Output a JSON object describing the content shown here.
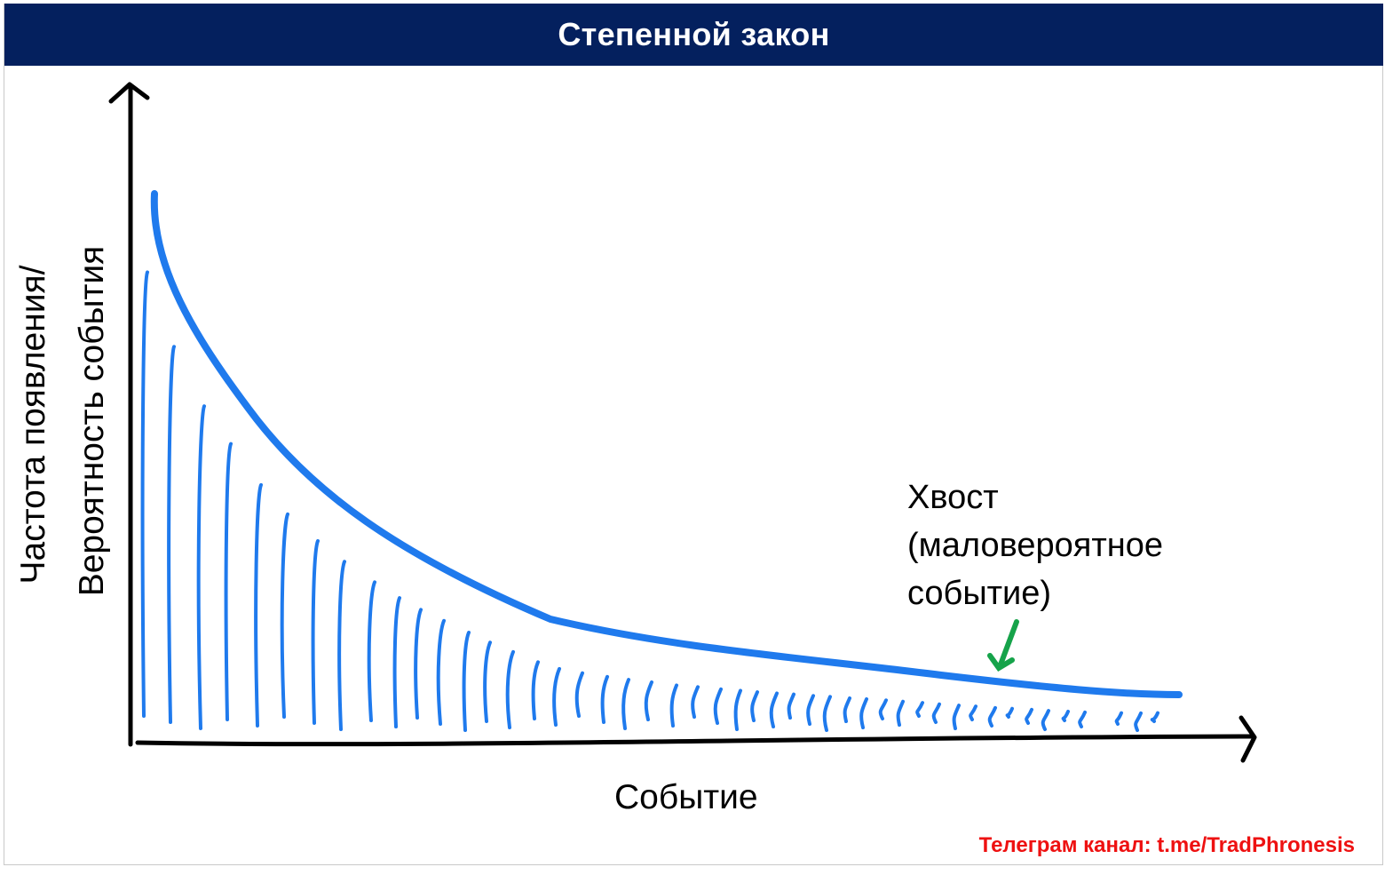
{
  "slide": {
    "title": "Степенной закон"
  },
  "axes": {
    "y_label_line1": "Частота появления/",
    "y_label_line2": "Вероятность события",
    "x_label": "Событие"
  },
  "annotation": {
    "line1": "Хвост",
    "line2": "(маловероятное",
    "line3": "событие)",
    "arrow_icon": "arrow-down-left-icon",
    "arrow_color": "#16a34a"
  },
  "footer": {
    "channel_label": "Телеграм канал:",
    "channel_link": "t.me/TradPhronesis",
    "color": "#ee1111"
  },
  "colors": {
    "title_bar": "#04205e",
    "curve": "#1f7aed",
    "axes": "#000000"
  }
}
